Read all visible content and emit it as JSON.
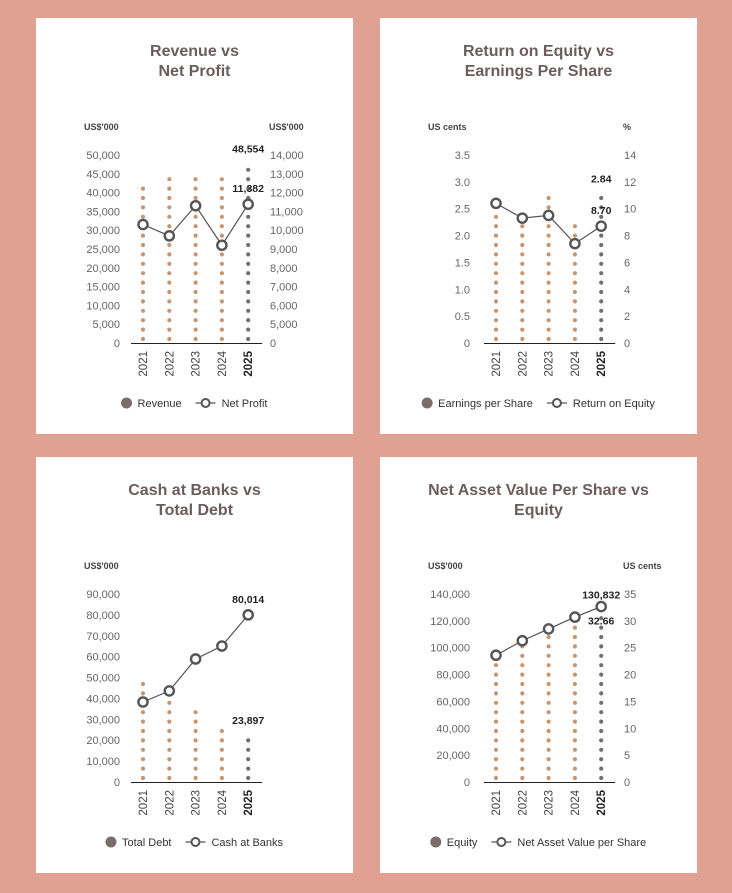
{
  "chart_data": [
    {
      "type": "combo",
      "title": [
        "Revenue vs",
        "Net Profit"
      ],
      "y_label": "US$'000",
      "y2_label": "US$'000",
      "categories": [
        "2021",
        "2022",
        "2023",
        "2024",
        "2025"
      ],
      "series": [
        {
          "name": "Revenue",
          "type": "bar",
          "axis": "y",
          "color": "#c9956f",
          "highlight_color": "#7b6c6c",
          "values": [
            41200,
            44400,
            46000,
            44400,
            48554
          ],
          "value_labels": [
            null,
            null,
            null,
            null,
            "48,554"
          ]
        },
        {
          "name": "Net Profit",
          "type": "line",
          "axis": "y2",
          "color": "#555555",
          "values": [
            10300,
            9700,
            11300,
            9200,
            11382
          ],
          "value_labels": [
            null,
            null,
            null,
            null,
            "11,382"
          ]
        }
      ],
      "ylim": [
        0,
        50000
      ],
      "yticks": [
        0,
        {
          "value": 5000,
          "label": "5,000"
        },
        {
          "value": 10000,
          "label": "10,000"
        },
        {
          "value": 15000,
          "label": "15,000"
        },
        {
          "value": 20000,
          "label": "20,000"
        },
        {
          "value": 25000,
          "label": "25,000"
        },
        {
          "value": 30000,
          "label": "30,000"
        },
        {
          "value": 35000,
          "label": "35,000"
        },
        {
          "value": 40000,
          "label": "40,000"
        },
        {
          "value": 45000,
          "label": "45,000"
        },
        {
          "value": 50000,
          "label": "50,000"
        }
      ],
      "y2lim": [
        0,
        14000
      ],
      "y2_axis_break": true,
      "y2ticks": [
        0,
        {
          "value": 5000,
          "label": "5,000"
        },
        {
          "value": 6000,
          "label": "6,000"
        },
        {
          "value": 7000,
          "label": "7,000"
        },
        {
          "value": 8000,
          "label": "8,000"
        },
        {
          "value": 9000,
          "label": "9,000"
        },
        {
          "value": 10000,
          "label": "10,000"
        },
        {
          "value": 11000,
          "label": "11,000"
        },
        {
          "value": 12000,
          "label": "12,000"
        },
        {
          "value": 13000,
          "label": "13,000"
        },
        {
          "value": 14000,
          "label": "14,000"
        }
      ]
    },
    {
      "type": "combo",
      "title": [
        "Return on Equity vs",
        "Earnings Per Share"
      ],
      "y_label": "US cents",
      "y2_label": "%",
      "categories": [
        "2021",
        "2022",
        "2023",
        "2024",
        "2025"
      ],
      "series": [
        {
          "name": "Earnings per Share",
          "type": "bar",
          "axis": "y",
          "color": "#c9956f",
          "highlight_color": "#7b6c6c",
          "values": [
            2.45,
            2.2,
            2.8,
            2.2,
            2.84
          ],
          "value_labels": [
            null,
            null,
            null,
            null,
            "2.84"
          ]
        },
        {
          "name": "Return on Equity",
          "type": "line",
          "axis": "y2",
          "color": "#555555",
          "values": [
            10.4,
            9.3,
            9.5,
            7.4,
            8.7
          ],
          "value_labels": [
            null,
            null,
            null,
            null,
            "8.70"
          ]
        }
      ],
      "ylim": [
        0,
        3.5
      ],
      "yticks": [
        0,
        0.5,
        {
          "value": 1,
          "label": "1.0"
        },
        1.5,
        {
          "value": 2,
          "label": "2.0"
        },
        2.5,
        {
          "value": 3,
          "label": "3.0"
        },
        3.5
      ],
      "y2lim": [
        0,
        14
      ],
      "y2ticks": [
        0,
        2,
        4,
        6,
        8,
        10,
        12,
        14
      ]
    },
    {
      "type": "combo",
      "title": [
        "Cash at Banks vs",
        "Total Debt"
      ],
      "y_label": "US$'000",
      "categories": [
        "2021",
        "2022",
        "2023",
        "2024",
        "2025"
      ],
      "series": [
        {
          "name": "Total Debt",
          "type": "bar",
          "axis": "y",
          "color": "#c9956f",
          "highlight_color": "#7b6c6c",
          "values": [
            49000,
            40000,
            34000,
            28000,
            23897
          ],
          "value_labels": [
            null,
            null,
            null,
            null,
            "23,897"
          ]
        },
        {
          "name": "Cash at Banks",
          "type": "line",
          "axis": "y",
          "color": "#555555",
          "values": [
            38300,
            43600,
            58900,
            65100,
            80014
          ],
          "value_labels": [
            null,
            null,
            null,
            null,
            "80,014"
          ]
        }
      ],
      "ylim": [
        0,
        90000
      ],
      "yticks": [
        0,
        {
          "value": 10000,
          "label": "10,000"
        },
        {
          "value": 20000,
          "label": "20,000"
        },
        {
          "value": 30000,
          "label": "30,000"
        },
        {
          "value": 40000,
          "label": "40,000"
        },
        {
          "value": 50000,
          "label": "50,000"
        },
        {
          "value": 60000,
          "label": "60,000"
        },
        {
          "value": 70000,
          "label": "70,000"
        },
        {
          "value": 80000,
          "label": "80,000"
        },
        {
          "value": 90000,
          "label": "90,000"
        }
      ]
    },
    {
      "type": "combo",
      "title": [
        "Net Asset Value Per Share vs",
        "Equity"
      ],
      "y_label": "US$'000",
      "y2_label": "US cents",
      "categories": [
        "2021",
        "2022",
        "2023",
        "2024",
        "2025"
      ],
      "series": [
        {
          "name": "Equity",
          "type": "bar",
          "axis": "y",
          "color": "#c9956f",
          "highlight_color": "#7b6c6c",
          "values": [
            91600,
            106500,
            112400,
            121400,
            130832
          ],
          "value_labels": [
            null,
            null,
            null,
            null,
            "130,832"
          ]
        },
        {
          "name": "Net Asset Value per Share",
          "type": "line",
          "axis": "y2",
          "color": "#555555",
          "values": [
            23.6,
            26.3,
            28.5,
            30.7,
            32.66
          ],
          "value_labels": [
            null,
            null,
            null,
            null,
            "32.66"
          ]
        }
      ],
      "ylim": [
        0,
        140000
      ],
      "yticks": [
        0,
        {
          "value": 20000,
          "label": "20,000"
        },
        {
          "value": 40000,
          "label": "40,000"
        },
        {
          "value": 60000,
          "label": "60,000"
        },
        {
          "value": 80000,
          "label": "80,000"
        },
        {
          "value": 100000,
          "label": "100,000"
        },
        {
          "value": 120000,
          "label": "120,000"
        },
        {
          "value": 140000,
          "label": "140,000"
        }
      ],
      "y2lim": [
        0,
        35
      ],
      "y2ticks": [
        0,
        5,
        10,
        15,
        20,
        25,
        30,
        35
      ]
    }
  ]
}
